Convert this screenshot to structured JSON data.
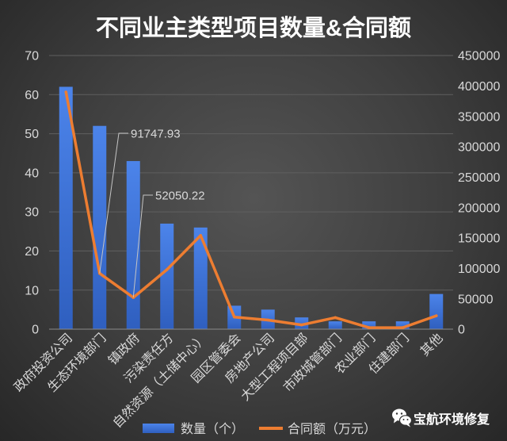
{
  "chart_data": {
    "type": "bar",
    "title": "不同业主类型项目数量&合同额",
    "categories": [
      "政府投资公司",
      "生态环境部门",
      "镇政府",
      "污染责任方",
      "自然资源（土储中心）",
      "园区管委会",
      "房地产公司",
      "大型工程项目部",
      "市政城管部门",
      "农业部门",
      "住建部门",
      "其他"
    ],
    "series": [
      {
        "name": "数量（个）",
        "type": "bar",
        "y_axis": "y_left",
        "color": "#2f5fbf",
        "values": [
          62,
          52,
          43,
          27,
          26,
          6,
          5,
          3,
          2,
          2,
          2,
          9
        ]
      },
      {
        "name": "合同额（万元）",
        "type": "line",
        "y_axis": "y_right",
        "color": "#ed7d31",
        "values": [
          390000,
          91747.93,
          52050.22,
          98000,
          154000,
          20000,
          15000,
          7000,
          19000,
          2500,
          2500,
          22000
        ]
      }
    ],
    "data_labels": [
      {
        "series_index": 1,
        "point_index": 1,
        "text": "91747.93"
      },
      {
        "series_index": 1,
        "point_index": 2,
        "text": "52050.22"
      }
    ],
    "y_left": {
      "range": [
        0,
        70
      ],
      "ticks": [
        0,
        10,
        20,
        30,
        40,
        50,
        60,
        70
      ]
    },
    "y_right": {
      "range": [
        0,
        450000
      ],
      "ticks": [
        0,
        50000,
        100000,
        150000,
        200000,
        250000,
        300000,
        350000,
        400000,
        450000
      ]
    },
    "grid": true,
    "legend_position": "bottom"
  },
  "watermark": {
    "text": "宝航环境修复",
    "icon": "wechat-icon"
  }
}
